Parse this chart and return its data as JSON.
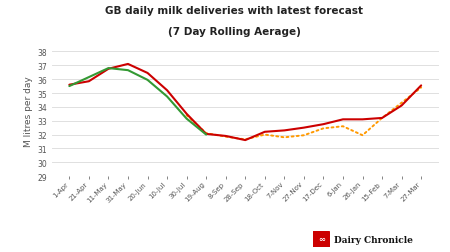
{
  "title_line1": "GB daily milk deliveries with latest forecast",
  "title_line2": "(7 Day Rolling Aerage)",
  "ylabel": "M litres per day",
  "ylim": [
    29,
    38.5
  ],
  "yticks": [
    29,
    30,
    31,
    32,
    33,
    34,
    35,
    36,
    37,
    38
  ],
  "background_color": "#ffffff",
  "grid_color": "#e0e0e0",
  "x_labels": [
    "1-Apr",
    "21-Apr",
    "11-May",
    "31-May",
    "20-Jun",
    "10-Jul",
    "30-Jul",
    "19-Aug",
    "8-Sep",
    "28-Sep",
    "18-Oct",
    "7-Nov",
    "27-Nov",
    "17-Dec",
    "6-Jan",
    "26-Jan",
    "15-Feb",
    "7-Mar",
    "27-Mar"
  ],
  "red_line": [
    35.6,
    35.85,
    36.75,
    37.1,
    36.45,
    35.2,
    33.5,
    32.05,
    31.9,
    31.6,
    32.2,
    32.3,
    32.5,
    32.75,
    33.1,
    33.1,
    33.2,
    34.1,
    35.55
  ],
  "green_line": [
    35.5,
    36.15,
    36.8,
    36.65,
    35.95,
    34.75,
    33.15,
    32.0,
    null,
    null,
    null,
    null,
    null,
    null,
    null,
    null,
    null,
    null,
    null
  ],
  "orange_dotted": [
    null,
    null,
    null,
    null,
    null,
    null,
    33.4,
    32.1,
    31.85,
    31.65,
    32.0,
    31.8,
    31.95,
    32.45,
    32.6,
    31.95,
    33.2,
    34.3,
    35.4
  ],
  "red_color": "#cc0000",
  "green_color": "#339933",
  "orange_color": "#ff9900",
  "watermark_text": "Dairy Chronicle",
  "watermark_color": "#111111",
  "logo_color": "#cc0000",
  "title_fontsize": 7.5,
  "ylabel_fontsize": 6.5,
  "tick_fontsize": 5.5,
  "xtick_fontsize": 5.0
}
